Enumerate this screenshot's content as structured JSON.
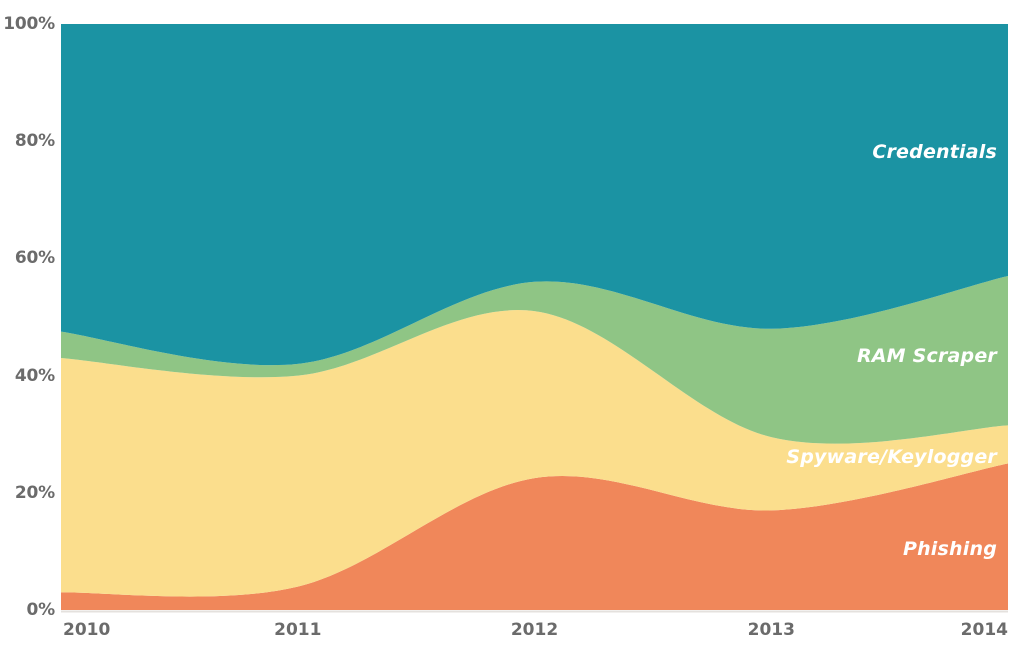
{
  "chart_data": {
    "type": "area",
    "stacked": true,
    "normalized_100_percent": true,
    "title": "",
    "xlabel": "",
    "ylabel": "",
    "x": [
      2010,
      2011,
      2012,
      2013,
      2014
    ],
    "x_tick_labels": [
      "2010",
      "2011",
      "2012",
      "2013",
      "2014"
    ],
    "y_tick_labels": [
      "0%",
      "20%",
      "40%",
      "60%",
      "80%",
      "100%"
    ],
    "y_ticks": [
      0,
      20,
      40,
      60,
      80,
      100
    ],
    "ylim": [
      0,
      100
    ],
    "grid": false,
    "legend_position": "labels-inside-right",
    "series": [
      {
        "name": "Phishing",
        "color": "#f0875a",
        "values": [
          3,
          4,
          22.5,
          17,
          25
        ]
      },
      {
        "name": "Spyware/Keylogger",
        "color": "#fbde8d",
        "values": [
          40,
          36,
          28.5,
          12.5,
          6.5
        ]
      },
      {
        "name": "RAM Scraper",
        "color": "#8fc585",
        "values": [
          4.5,
          2,
          5,
          18.5,
          25.5
        ]
      },
      {
        "name": "Credentials",
        "color": "#1b93a3",
        "values": [
          52.5,
          58,
          44,
          52,
          43
        ]
      }
    ]
  },
  "styles": {
    "tick_label_color": "#6b6b6b",
    "series_label_color": "#ffffff",
    "axis_line_color": "#e4e1de",
    "background": "#ffffff"
  }
}
